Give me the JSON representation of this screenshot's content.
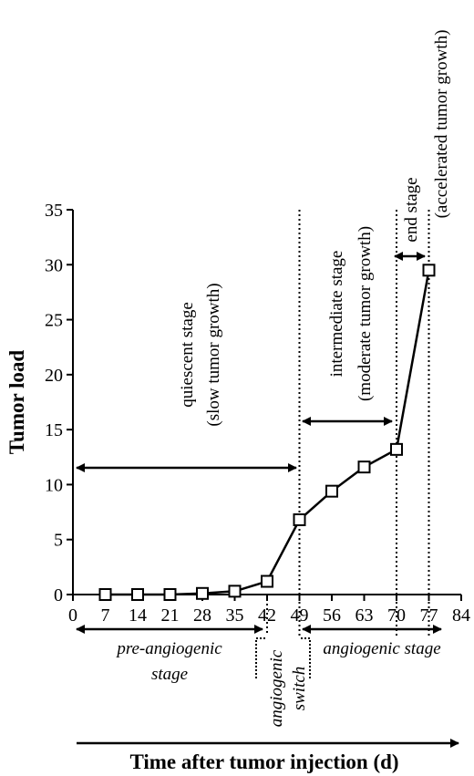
{
  "chart_data": {
    "type": "line",
    "xlabel": "Time after tumor injection (d)",
    "ylabel": "Tumor load",
    "xlim": [
      0,
      84
    ],
    "ylim": [
      0,
      35
    ],
    "x_ticks": [
      0,
      7,
      14,
      21,
      28,
      35,
      42,
      49,
      56,
      63,
      70,
      77,
      84
    ],
    "y_ticks": [
      0,
      5,
      10,
      15,
      20,
      25,
      30,
      35
    ],
    "x_tick_labels": [
      "0",
      "7",
      "14",
      "21",
      "28",
      "35",
      "42",
      "49",
      "56",
      "63",
      "70",
      "77",
      "84"
    ],
    "y_tick_labels": [
      "0",
      "5",
      "10",
      "15",
      "20",
      "25",
      "30",
      "35"
    ],
    "series": [
      {
        "x": [
          7,
          14,
          21,
          28,
          35,
          42,
          49,
          56,
          63,
          70,
          77
        ],
        "values": [
          0.0,
          0.0,
          0.0,
          0.1,
          0.3,
          1.2,
          6.8,
          9.4,
          11.6,
          13.2,
          29.5
        ]
      }
    ],
    "reference_lines_x": [
      49,
      70,
      77
    ],
    "stages_above": [
      {
        "lines": [
          "quiescent stage",
          "(slow  tumor growth)"
        ],
        "from": 0,
        "to": 49
      },
      {
        "lines": [
          "intermediate stage",
          "(moderate tumor growth)"
        ],
        "from": 49,
        "to": 70
      },
      {
        "lines": [
          "end stage",
          "(accelerated tumor growth)"
        ],
        "from": 70,
        "to": 77
      }
    ],
    "stages_below": [
      {
        "lines": [
          "pre-angiogenic",
          "stage"
        ],
        "from": 0,
        "to": 42
      },
      {
        "lines": [
          "angiogenic",
          "switch"
        ],
        "from": 42,
        "to": 49
      },
      {
        "lines": [
          "angiogenic stage"
        ],
        "from": 49,
        "to": 77
      }
    ]
  }
}
